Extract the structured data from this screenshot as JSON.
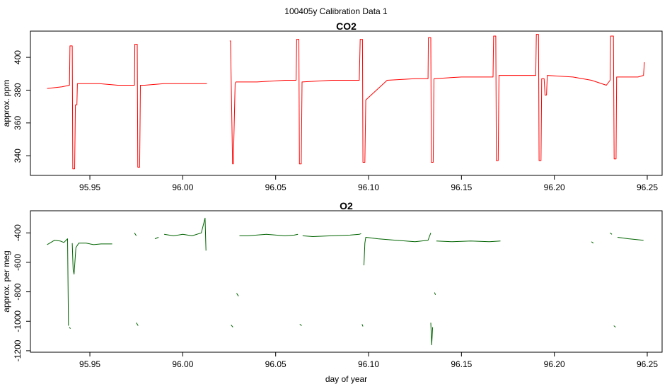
{
  "suptitle": "100405y   Calibration Data 1",
  "colors": {
    "co2": "#ff0000",
    "o2": "#006400"
  },
  "chart_data": [
    {
      "type": "line",
      "title": "CO2",
      "xlabel": "",
      "ylabel": "approx. ppm",
      "xlim": [
        95.918,
        96.258
      ],
      "ylim": [
        328,
        416
      ],
      "xticks": [
        95.95,
        96.0,
        96.05,
        96.1,
        96.15,
        96.2,
        96.25
      ],
      "xtick_labels": [
        "95.95",
        "96.00",
        "96.05",
        "96.10",
        "96.15",
        "96.20",
        "96.25"
      ],
      "yticks": [
        340,
        360,
        380,
        400
      ],
      "ytick_labels": [
        "340",
        "360",
        "380",
        "400"
      ],
      "series": [
        {
          "color": "#ff0000",
          "x": [
            95.927,
            95.935,
            95.939,
            95.9393,
            95.9405,
            95.9408,
            95.9418,
            95.9422,
            95.943,
            95.9433,
            95.944,
            95.955,
            95.965,
            95.974,
            95.9742,
            95.9755,
            95.9758,
            95.9768,
            95.9772,
            95.979,
            95.9795,
            95.99,
            96.0,
            96.013,
            95.92,
            95.92,
            96.0253,
            96.0257,
            96.0268,
            96.0272,
            96.0282,
            96.0286,
            96.04,
            96.055,
            96.061,
            96.0613,
            96.0625,
            96.0628,
            96.0638,
            96.0642,
            96.08,
            96.095,
            96.0955,
            96.0967,
            96.097,
            96.098,
            96.0985,
            96.11,
            96.125,
            96.132,
            96.1322,
            96.1335,
            96.1338,
            96.1348,
            96.1352,
            96.15,
            96.165,
            96.167,
            96.1673,
            96.1685,
            96.1688,
            96.1698,
            96.1702,
            96.18,
            96.19,
            96.1903,
            96.1915,
            96.1918,
            96.1928,
            96.1932,
            96.1945,
            96.195,
            96.1958,
            96.1962,
            96.21,
            96.22,
            96.228,
            96.23,
            96.2303,
            96.2318,
            96.2322,
            96.2332,
            96.2335,
            96.245,
            96.248,
            96.2485
          ],
          "y": [
            381,
            382,
            383,
            407,
            407,
            332,
            332,
            371,
            371,
            384,
            384,
            384,
            383,
            383,
            408,
            408,
            333,
            333,
            383,
            383,
            383,
            384,
            384,
            384,
            null,
            null,
            410,
            410,
            335,
            335,
            384,
            385,
            385,
            386,
            386,
            411,
            411,
            335,
            335,
            385,
            386,
            386,
            411,
            411,
            336,
            336,
            374,
            386,
            387,
            387,
            412,
            412,
            336,
            336,
            387,
            388,
            388,
            388,
            413,
            413,
            337,
            337,
            389,
            389,
            389,
            414,
            414,
            337,
            337,
            387,
            387,
            377,
            377,
            389,
            388,
            386,
            383,
            386,
            413,
            413,
            338,
            338,
            388,
            388,
            389,
            397
          ]
        }
      ]
    },
    {
      "type": "line",
      "title": "O2",
      "xlabel": "day of year",
      "ylabel": "approx. per meg",
      "xlim": [
        95.918,
        96.258
      ],
      "ylim": [
        -1210,
        -250
      ],
      "xticks": [
        95.95,
        96.0,
        96.05,
        96.1,
        96.15,
        96.2,
        96.25
      ],
      "xtick_labels": [
        "95.95",
        "96.00",
        "96.05",
        "96.10",
        "96.15",
        "96.20",
        "96.25"
      ],
      "yticks": [
        -1200,
        -1000,
        -800,
        -600,
        -400
      ],
      "ytick_labels": [
        "-1200",
        "-1000",
        "-800",
        "-600",
        "-400"
      ],
      "series": [
        {
          "color": "#006400",
          "x": [
            95.927,
            95.931,
            95.934,
            95.936,
            95.938,
            95.9385,
            null,
            95.939,
            95.9395,
            null,
            95.9405,
            95.941,
            95.9415,
            95.9425,
            95.944,
            95.948,
            95.952,
            95.956,
            95.962,
            null,
            95.974,
            95.975,
            null,
            95.975,
            95.976,
            null,
            95.985,
            95.987,
            null,
            95.99,
            95.995,
            96.0,
            96.005,
            96.01,
            96.012,
            96.0125,
            null,
            96.026,
            96.027,
            null,
            96.029,
            96.03,
            null,
            96.0305,
            96.035,
            96.045,
            96.055,
            96.06,
            96.062,
            null,
            96.063,
            96.064,
            null,
            96.0645,
            96.07,
            96.08,
            96.09,
            96.095,
            96.096,
            null,
            96.0965,
            96.097,
            null,
            96.0975,
            96.098,
            96.0985,
            96.105,
            96.115,
            96.125,
            96.132,
            96.1335,
            null,
            96.1335,
            96.134,
            96.1345,
            null,
            96.1355,
            96.136,
            null,
            96.1365,
            96.145,
            96.155,
            96.165,
            96.171,
            null,
            96.22,
            96.221,
            null,
            96.23,
            96.231,
            null,
            96.232,
            96.233,
            null,
            96.234,
            96.24,
            96.248
          ],
          "y": [
            -480,
            -450,
            -455,
            -465,
            -440,
            -1030,
            null,
            -1040,
            -1050,
            null,
            -470,
            -650,
            -680,
            -500,
            -470,
            -470,
            -480,
            -475,
            -475,
            null,
            -400,
            -420,
            null,
            -1010,
            -1030,
            null,
            -440,
            -430,
            null,
            -410,
            -420,
            -410,
            -420,
            -400,
            -300,
            -520,
            null,
            -1025,
            -1040,
            null,
            -810,
            -830,
            null,
            -420,
            -420,
            -410,
            -420,
            -415,
            -410,
            null,
            -1020,
            -1030,
            null,
            -420,
            -425,
            -420,
            -415,
            -410,
            -405,
            null,
            -1020,
            -1035,
            null,
            -620,
            -470,
            -430,
            -440,
            -450,
            -460,
            -450,
            -400,
            null,
            -1010,
            -1160,
            -1040,
            null,
            -805,
            -820,
            null,
            -455,
            -460,
            -455,
            -460,
            -455,
            null,
            -460,
            -470,
            null,
            -400,
            -410,
            null,
            -1030,
            -1040,
            null,
            -430,
            -440,
            -450
          ]
        }
      ]
    }
  ]
}
